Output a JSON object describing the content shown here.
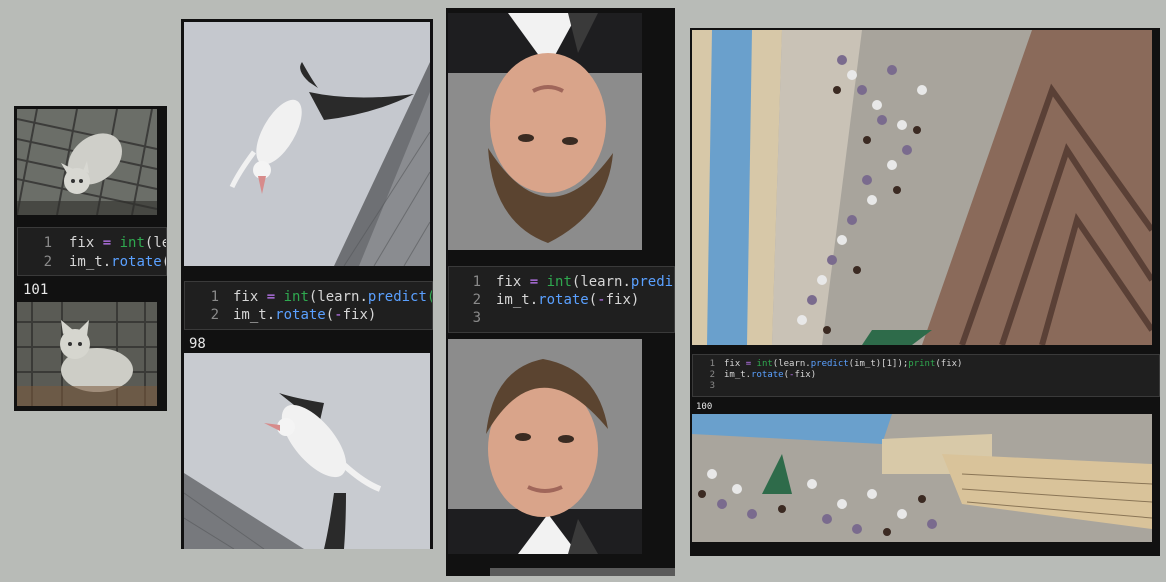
{
  "panels": [
    {
      "image": "rotated-cat-photo",
      "code_lines": [
        {
          "num": "1",
          "parts": [
            "fix ",
            "=",
            " ",
            "int",
            "(le"
          ]
        },
        {
          "num": "2",
          "parts": [
            "im_t.",
            "rotate",
            "("
          ]
        }
      ],
      "output": "101",
      "result_image": "upright-cat-photo"
    },
    {
      "image": "rotated-albatross-photo",
      "code_lines": [
        {
          "num": "1",
          "parts": [
            "fix ",
            "=",
            " ",
            "int",
            "(learn.",
            "predict",
            "("
          ]
        },
        {
          "num": "2",
          "parts": [
            "im_t.",
            "rotate",
            "(",
            "-",
            "fix)"
          ]
        }
      ],
      "output": "98",
      "result_image": "corrected-albatross-photo"
    },
    {
      "image": "upside-down-face-photo",
      "code_lines": [
        {
          "num": "1",
          "parts": [
            "fix ",
            "=",
            " ",
            "int",
            "(learn.",
            "predi"
          ]
        },
        {
          "num": "2",
          "parts": [
            "im_t.",
            "rotate",
            "(",
            "-",
            "fix)"
          ]
        },
        {
          "num": "3",
          "parts": [
            ""
          ]
        }
      ],
      "output": "",
      "result_image": "upright-face-photo"
    },
    {
      "image": "rotated-crowd-photo",
      "code_lines": [
        {
          "num": "1",
          "parts": [
            "fix ",
            "=",
            " ",
            "int",
            "(learn.",
            "predict",
            "(im_t)[1]);",
            "print",
            "(fix)"
          ]
        },
        {
          "num": "2",
          "parts": [
            "im_t.",
            "rotate",
            "(",
            "-",
            "fix)"
          ]
        },
        {
          "num": "3",
          "parts": [
            ""
          ]
        }
      ],
      "output": "100",
      "result_image": "upright-crowd-photo"
    }
  ],
  "colors": {
    "builtin": "#2fa84f",
    "operator": "#c77dff",
    "function": "#5aa0ff"
  }
}
